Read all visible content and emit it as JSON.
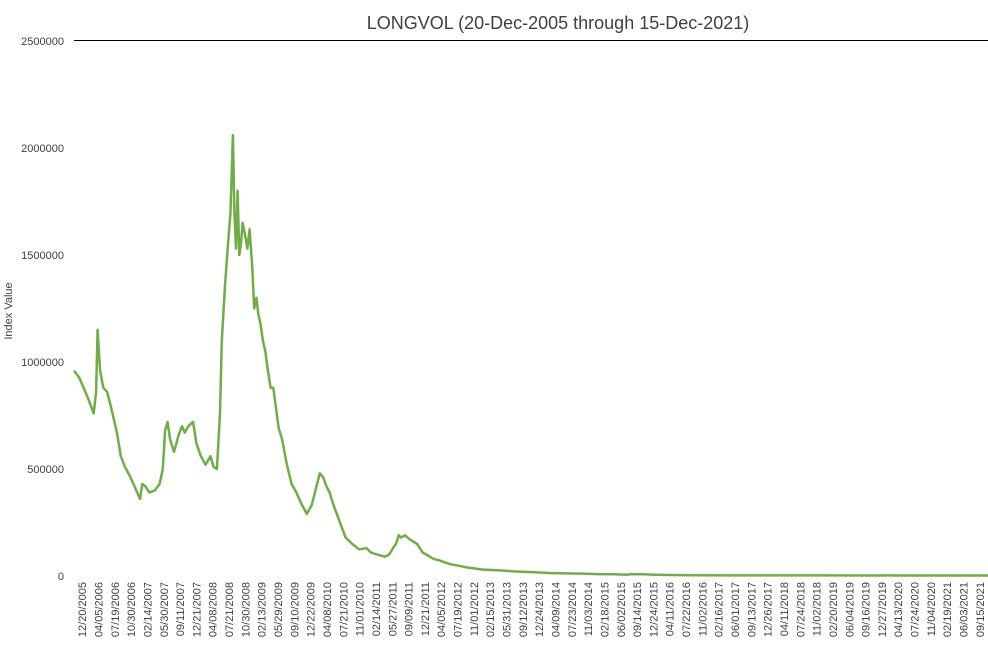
{
  "chart_data": {
    "type": "line",
    "title": "LONGVOL (20-Dec-2005 through 15-Dec-2021)",
    "xlabel": "",
    "ylabel": "Index Value",
    "ylim": [
      0,
      2500000
    ],
    "yticks": [
      0,
      500000,
      1000000,
      1500000,
      2000000,
      2500000
    ],
    "ytick_labels": [
      "0",
      "500000",
      "1000000",
      "1500000",
      "2000000",
      "2500000"
    ],
    "xlim": [
      "2005-12-20",
      "2021-12-15"
    ],
    "xtick_labels": [
      "12/20/2005",
      "04/05/2006",
      "07/19/2006",
      "10/30/2006",
      "02/14/2007",
      "05/30/2007",
      "09/11/2007",
      "12/21/2007",
      "04/08/2008",
      "07/21/2008",
      "10/30/2008",
      "02/13/2009",
      "05/29/2009",
      "09/10/2009",
      "12/22/2009",
      "04/08/2010",
      "07/21/2010",
      "11/01/2010",
      "02/14/2011",
      "05/27/2011",
      "09/09/2011",
      "12/21/2011",
      "04/05/2012",
      "07/19/2012",
      "11/01/2012",
      "02/15/2013",
      "05/31/2013",
      "09/12/2013",
      "12/24/2013",
      "04/09/2014",
      "07/23/2014",
      "11/03/2014",
      "02/18/2015",
      "06/02/2015",
      "09/14/2015",
      "12/24/2015",
      "04/11/2016",
      "07/22/2016",
      "11/02/2016",
      "02/16/2017",
      "06/01/2017",
      "09/13/2017",
      "12/26/2017",
      "04/11/2018",
      "07/24/2018",
      "11/02/2018",
      "02/20/2019",
      "06/04/2019",
      "09/16/2019",
      "12/27/2019",
      "04/13/2020",
      "07/24/2020",
      "11/04/2020",
      "02/19/2021",
      "06/03/2021",
      "09/15/2021"
    ],
    "grid": false,
    "legend": "none",
    "series": [
      {
        "color": "#70ad47",
        "x": [
          "2005-12-20",
          "2006-01-20",
          "2006-02-25",
          "2006-03-25",
          "2006-04-25",
          "2006-05-10",
          "2006-05-20",
          "2006-06-05",
          "2006-06-25",
          "2006-07-20",
          "2006-08-20",
          "2006-09-20",
          "2006-10-15",
          "2006-11-10",
          "2006-12-10",
          "2007-01-10",
          "2007-02-15",
          "2007-03-01",
          "2007-03-20",
          "2007-04-15",
          "2007-05-20",
          "2007-06-20",
          "2007-07-10",
          "2007-07-25",
          "2007-08-10",
          "2007-08-25",
          "2007-09-20",
          "2007-10-20",
          "2007-11-10",
          "2007-11-28",
          "2007-12-20",
          "2008-01-20",
          "2008-02-10",
          "2008-03-10",
          "2008-04-08",
          "2008-05-10",
          "2008-05-30",
          "2008-06-20",
          "2008-07-10",
          "2008-07-21",
          "2008-08-10",
          "2008-08-30",
          "2008-09-15",
          "2008-09-30",
          "2008-10-10",
          "2008-10-20",
          "2008-10-30",
          "2008-11-10",
          "2008-11-20",
          "2008-12-01",
          "2008-12-15",
          "2008-12-31",
          "2009-01-15",
          "2009-02-01",
          "2009-02-13",
          "2009-02-28",
          "2009-03-10",
          "2009-03-25",
          "2009-04-10",
          "2009-04-25",
          "2009-05-10",
          "2009-05-29",
          "2009-06-15",
          "2009-07-01",
          "2009-07-20",
          "2009-08-10",
          "2009-09-10",
          "2009-10-10",
          "2009-11-10",
          "2009-12-10",
          "2010-01-15",
          "2010-02-15",
          "2010-03-15",
          "2010-04-08",
          "2010-05-01",
          "2010-05-20",
          "2010-06-10",
          "2010-07-01",
          "2010-07-21",
          "2010-08-20",
          "2010-09-20",
          "2010-11-01",
          "2010-12-15",
          "2011-02-01",
          "2011-03-01",
          "2011-03-20",
          "2011-04-10",
          "2011-05-05",
          "2011-05-27",
          "2011-06-25",
          "2011-07-20",
          "2011-08-08",
          "2011-08-25",
          "2011-09-09",
          "2011-10-05",
          "2011-11-05",
          "2011-12-21",
          "2012-01-25",
          "2012-03-01",
          "2012-04-05",
          "2012-05-15",
          "2012-06-10",
          "2012-07-19",
          "2012-09-10",
          "2012-11-01",
          "2013-02-15",
          "2013-05-31",
          "2013-09-12",
          "2013-12-24",
          "2014-04-09",
          "2014-07-23",
          "2014-11-03",
          "2015-02-18",
          "2015-06-02",
          "2015-08-25",
          "2015-09-14",
          "2015-12-24",
          "2016-02-15",
          "2016-04-11",
          "2016-07-22",
          "2016-11-02",
          "2017-06-01",
          "2018-02-16",
          "2019-01-15",
          "2020-01-15",
          "2020-03-20",
          "2020-06-01",
          "2021-01-15",
          "2021-12-15"
        ],
        "y": [
          960000,
          930000,
          870000,
          820000,
          760000,
          860000,
          1150000,
          960000,
          880000,
          860000,
          770000,
          670000,
          560000,
          510000,
          470000,
          420000,
          360000,
          430000,
          420000,
          390000,
          400000,
          430000,
          500000,
          680000,
          720000,
          640000,
          580000,
          660000,
          700000,
          670000,
          700000,
          720000,
          620000,
          560000,
          520000,
          560000,
          510000,
          500000,
          760000,
          1100000,
          1350000,
          1550000,
          1700000,
          2060000,
          1700000,
          1530000,
          1800000,
          1500000,
          1550000,
          1650000,
          1600000,
          1530000,
          1620000,
          1440000,
          1250000,
          1300000,
          1230000,
          1180000,
          1100000,
          1050000,
          970000,
          880000,
          880000,
          790000,
          690000,
          640000,
          520000,
          430000,
          390000,
          340000,
          290000,
          330000,
          410000,
          480000,
          460000,
          420000,
          390000,
          340000,
          300000,
          240000,
          180000,
          150000,
          125000,
          130000,
          110000,
          105000,
          100000,
          95000,
          90000,
          100000,
          130000,
          150000,
          190000,
          180000,
          190000,
          170000,
          150000,
          110000,
          95000,
          80000,
          72000,
          65000,
          55000,
          48000,
          40000,
          30000,
          26000,
          21000,
          18000,
          14000,
          12000,
          11000,
          9000,
          8500,
          6000,
          9000,
          7500,
          6000,
          5000,
          4000,
          3500,
          3000,
          2800,
          2600,
          2400,
          3000,
          2500,
          2300,
          2200
        ]
      }
    ]
  }
}
